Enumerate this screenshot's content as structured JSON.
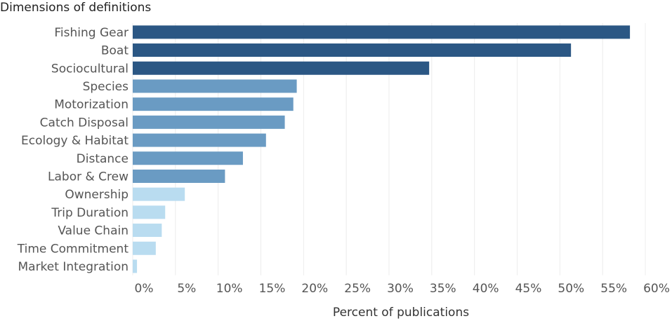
{
  "chart_data": {
    "type": "bar",
    "orientation": "horizontal",
    "title": "Dimensions of definitions",
    "xlabel": "Percent of publications",
    "ylabel": "",
    "xlim": [
      0,
      60
    ],
    "x_ticks": [
      "0%",
      "5%",
      "10%",
      "15%",
      "20%",
      "25%",
      "30%",
      "35%",
      "40%",
      "45%",
      "50%",
      "55%",
      "60%"
    ],
    "grid": "vertical",
    "categories": [
      "Fishing Gear",
      "Boat",
      "Sociocultural",
      "Species",
      "Motorization",
      "Catch Disposal",
      "Ecology & Habitat",
      "Distance",
      "Labor & Crew",
      "Ownership",
      "Trip Duration",
      "Value Chain",
      "Time Commitment",
      "Market Integration"
    ],
    "values": [
      58.2,
      51.3,
      34.7,
      19.2,
      18.8,
      17.8,
      15.6,
      12.9,
      10.8,
      6.1,
      3.8,
      3.4,
      2.7,
      0.5
    ],
    "colors": [
      "#2b5784",
      "#2b5784",
      "#2b5784",
      "#6a9bc3",
      "#6a9bc3",
      "#6a9bc3",
      "#6a9bc3",
      "#6a9bc3",
      "#6a9bc3",
      "#b9dcf0",
      "#b9dcf0",
      "#b9dcf0",
      "#b9dcf0",
      "#b9dcf0"
    ]
  }
}
